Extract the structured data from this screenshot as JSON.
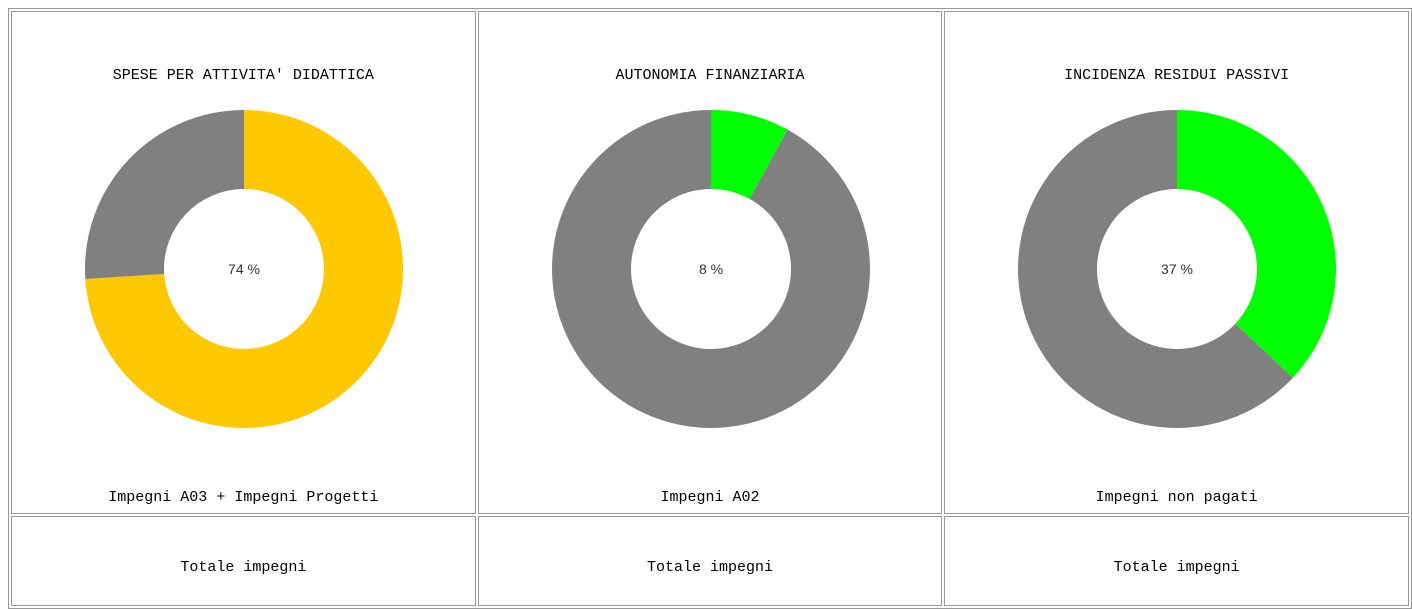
{
  "chart_data": [
    {
      "type": "pie",
      "title": "SPESE PER ATTIVITA' DIDATTICA",
      "values": [
        74,
        26
      ],
      "value_labels": [
        "74 %",
        null
      ],
      "colors": [
        "#ffc800",
        "#808080"
      ],
      "numerator": "Impegni A03 + Impegni Progetti",
      "denominator": "Totale impegni"
    },
    {
      "type": "pie",
      "title": "AUTONOMIA FINANZIARIA",
      "values": [
        8,
        92
      ],
      "value_labels": [
        "8 %",
        null
      ],
      "colors": [
        "#00ff00",
        "#808080"
      ],
      "numerator": "Impegni A02",
      "denominator": "Totale impegni"
    },
    {
      "type": "pie",
      "title": "INCIDENZA RESIDUI PASSIVI",
      "values": [
        37,
        63
      ],
      "value_labels": [
        "37 %",
        null
      ],
      "colors": [
        "#00ff00",
        "#808080"
      ],
      "numerator": "Impegni non pagati",
      "denominator": "Totale impegni"
    }
  ]
}
